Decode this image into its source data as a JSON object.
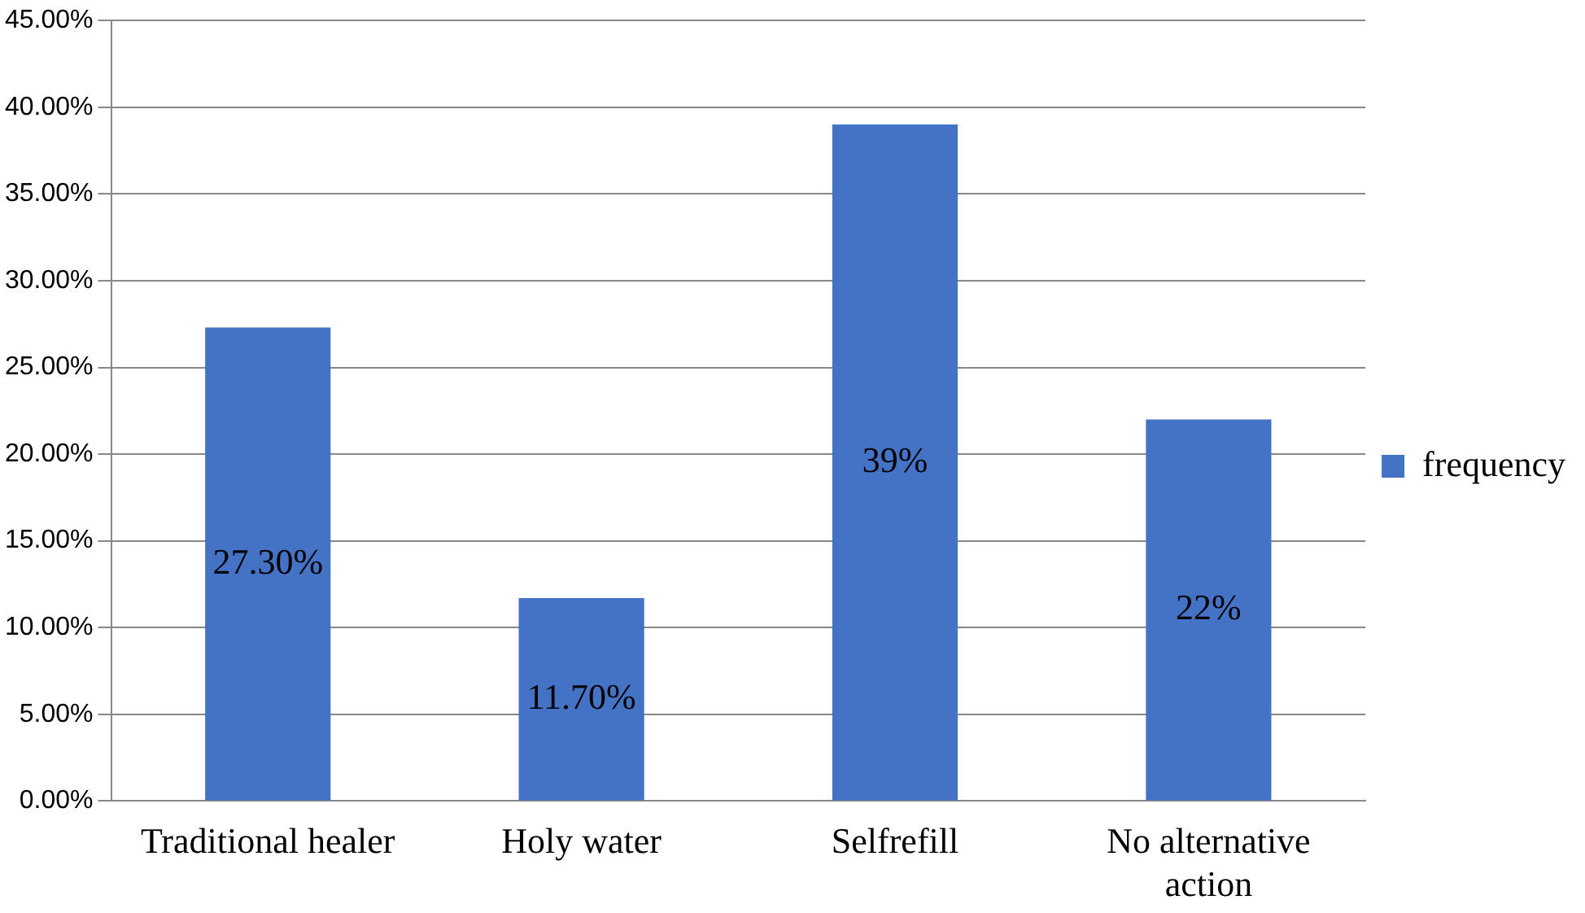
{
  "chart_data": {
    "type": "bar",
    "categories": [
      "Traditional healer",
      "Holy water",
      "Selfrefill",
      "No alternative action"
    ],
    "series": [
      {
        "name": "frequency",
        "color": "#4472c4",
        "values": [
          27.3,
          11.7,
          39,
          22
        ],
        "value_labels": [
          "27.30%",
          "11.70%",
          "39%",
          "22%"
        ]
      }
    ],
    "ylim": [
      0,
      45
    ],
    "yticks": [
      {
        "value": 0,
        "label": "0.00%"
      },
      {
        "value": 5,
        "label": "5.00%"
      },
      {
        "value": 10,
        "label": "10.00%"
      },
      {
        "value": 15,
        "label": "15.00%"
      },
      {
        "value": 20,
        "label": "20.00%"
      },
      {
        "value": 25,
        "label": "25.00%"
      },
      {
        "value": 30,
        "label": "30.00%"
      },
      {
        "value": 35,
        "label": "35.00%"
      },
      {
        "value": 40,
        "label": "40.00%"
      },
      {
        "value": 45,
        "label": "45.00%"
      }
    ],
    "grid": "y",
    "legend": "right"
  }
}
